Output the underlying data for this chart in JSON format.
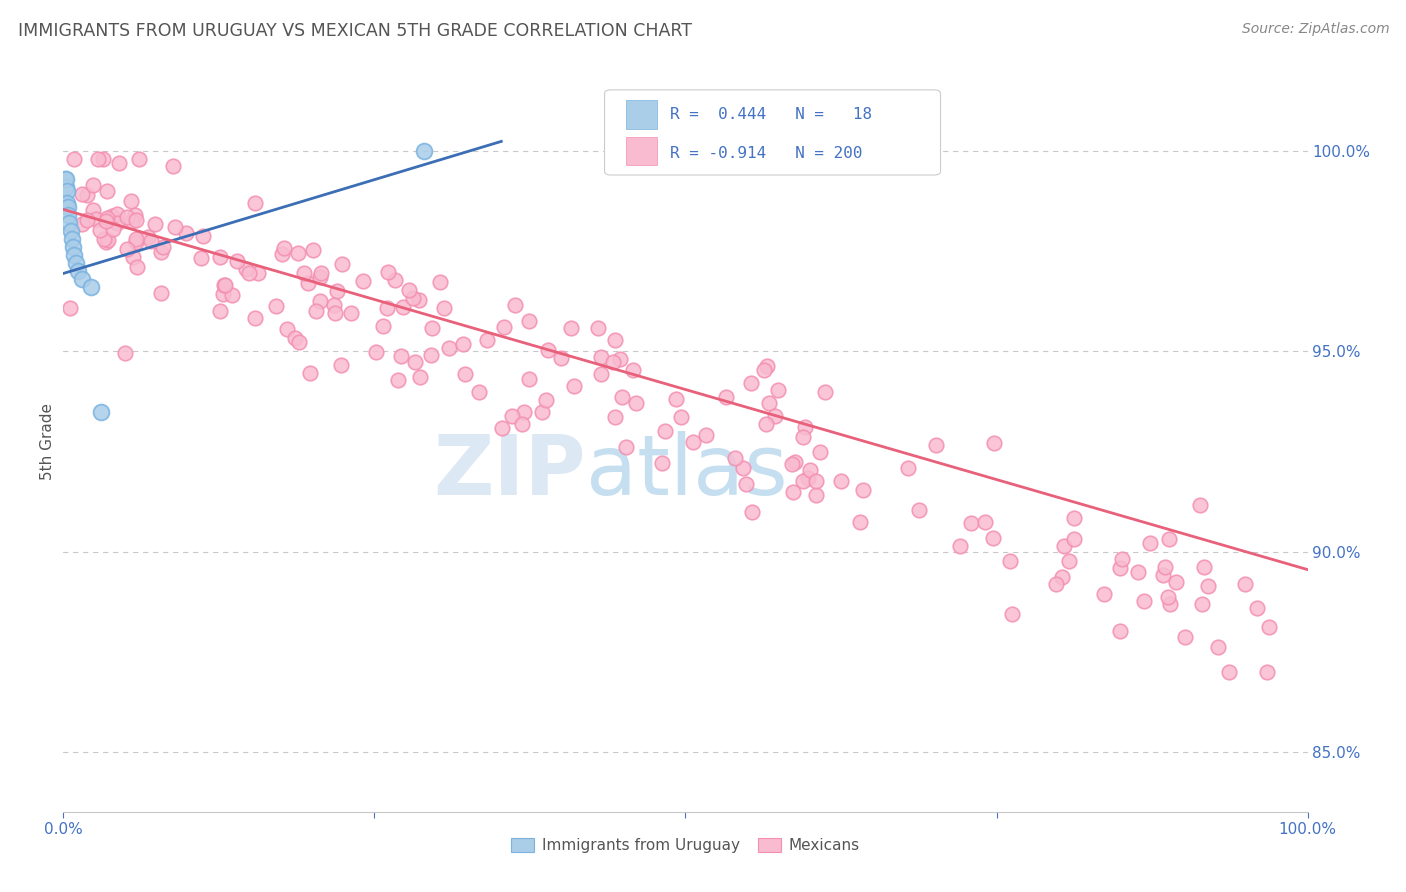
{
  "title": "IMMIGRANTS FROM URUGUAY VS MEXICAN 5TH GRADE CORRELATION CHART",
  "source": "Source: ZipAtlas.com",
  "ylabel": "5th Grade",
  "xlim": [
    0.0,
    1.0
  ],
  "ylim": [
    0.835,
    1.02
  ],
  "y_tick_labels_right": [
    "85.0%",
    "90.0%",
    "95.0%",
    "100.0%"
  ],
  "y_tick_vals_right": [
    0.85,
    0.9,
    0.95,
    1.0
  ],
  "blue_color": "#7ab3e0",
  "blue_fill": "#aacde8",
  "pink_color": "#f48fb1",
  "pink_fill": "#f8bbd0",
  "trendline_blue": "#3c6eb5",
  "trendline_pink": "#e8607a",
  "watermark_zip": "ZIP",
  "watermark_atlas": "atlas",
  "watermark_color_zip": "#dce9f5",
  "watermark_color_atlas": "#b8d4f0",
  "background_color": "#ffffff",
  "grid_color": "#c8c8c8",
  "title_color": "#555555",
  "axis_label_color": "#555555",
  "right_tick_color": "#4472c4",
  "source_color": "#888888",
  "legend_box_color": "#e8e8e8",
  "blue_trendline_x0": 0.0,
  "blue_trendline_y0": 0.9695,
  "blue_trendline_x1": 0.352,
  "blue_trendline_y1": 1.0025,
  "pink_trendline_x0": 0.0,
  "pink_trendline_y0": 0.9855,
  "pink_trendline_x1": 1.0,
  "pink_trendline_y1": 0.8955
}
